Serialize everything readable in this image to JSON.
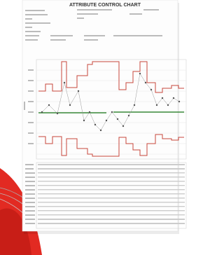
{
  "header": {
    "title": "ATTRIBUTE CONTROL CHART"
  }
}
